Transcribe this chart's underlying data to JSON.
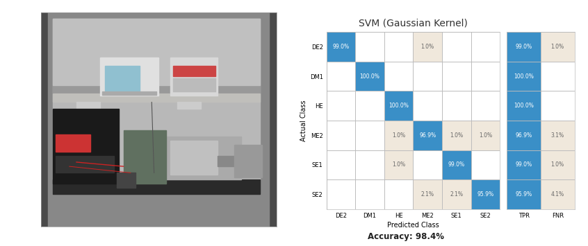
{
  "title": "SVM (Gaussian Kernel)",
  "accuracy_text": "Accuracy: 98.4%",
  "xlabel": "Predicted Class",
  "ylabel": "Actual Class",
  "classes": [
    "DE2",
    "DM1",
    "HE",
    "ME2",
    "SE1",
    "SE2"
  ],
  "confusion_matrix": [
    [
      99.0,
      0,
      0,
      1.0,
      0,
      0
    ],
    [
      0,
      100.0,
      0,
      0,
      0,
      0
    ],
    [
      0,
      0,
      100.0,
      0,
      0,
      0
    ],
    [
      0,
      0,
      1.0,
      96.9,
      1.0,
      1.0
    ],
    [
      0,
      0,
      1.0,
      0,
      99.0,
      0
    ],
    [
      0,
      0,
      0,
      2.1,
      2.1,
      95.9
    ]
  ],
  "tpr_fnr_labels": [
    "TPR",
    "FNR"
  ],
  "tpr_values": [
    99.0,
    100.0,
    100.0,
    96.9,
    99.0,
    95.9
  ],
  "fnr_values": [
    1.0,
    0.0,
    0.0,
    3.1,
    1.0,
    4.1
  ],
  "blue_color": "#3a8fc7",
  "light_color": "#f0e8dc",
  "white_color": "#FFFFFF",
  "background_color": "#FFFFFF",
  "title_fontsize": 10,
  "cell_fontsize": 5.5,
  "tick_fontsize": 6,
  "axis_label_fontsize": 7,
  "photo_bg": "#c8c8c8",
  "photo_dark": "#3a3a3a",
  "photo_shelf": "#9a9a9a",
  "photo_wall": "#b0b0b0"
}
